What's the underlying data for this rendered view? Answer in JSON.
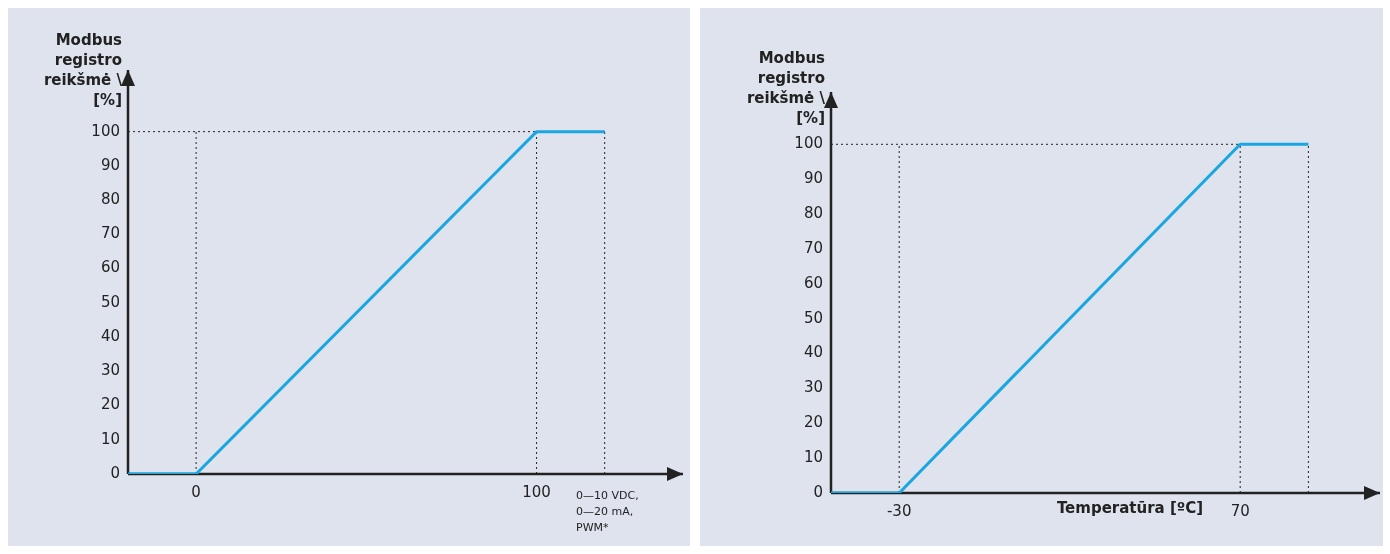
{
  "chart_data": [
    {
      "type": "line",
      "ylabel": "Modbus registro reikšmė \\ [%]",
      "xlabel": "0—10 VDC, 0—20 mA, PWM*",
      "x": [
        -20,
        0,
        100,
        120
      ],
      "series": [
        {
          "color": "#1aa7e1",
          "values": [
            0,
            0,
            100,
            100
          ]
        }
      ],
      "xlim": [
        -20,
        143
      ],
      "ylim": [
        0,
        118
      ],
      "xticks": [
        0,
        100
      ],
      "yticks": [
        0,
        10,
        20,
        30,
        40,
        50,
        60,
        70,
        80,
        90,
        100
      ],
      "marker": "none",
      "line_style": "solid",
      "ref_lines": [
        {
          "axis": "x",
          "value": 0
        },
        {
          "axis": "x",
          "value": 100
        },
        {
          "axis": "x",
          "value": 120
        },
        {
          "axis": "y",
          "value": 100
        }
      ]
    },
    {
      "type": "line",
      "ylabel": "Modbus registro reikšmė \\ [%]",
      "xlabel": "Temperatūra  [ºC]",
      "x": [
        -50,
        -30,
        70,
        90
      ],
      "series": [
        {
          "color": "#1aa7e1",
          "values": [
            0,
            0,
            100,
            100
          ]
        }
      ],
      "xlim": [
        -50,
        111
      ],
      "ylim": [
        0,
        115
      ],
      "xticks": [
        -30,
        70
      ],
      "yticks": [
        0,
        10,
        20,
        30,
        40,
        50,
        60,
        70,
        80,
        90,
        100
      ],
      "marker": "none",
      "line_style": "solid",
      "ref_lines": [
        {
          "axis": "x",
          "value": -30
        },
        {
          "axis": "x",
          "value": 70
        },
        {
          "axis": "x",
          "value": 90
        },
        {
          "axis": "y",
          "value": 100
        }
      ]
    }
  ]
}
